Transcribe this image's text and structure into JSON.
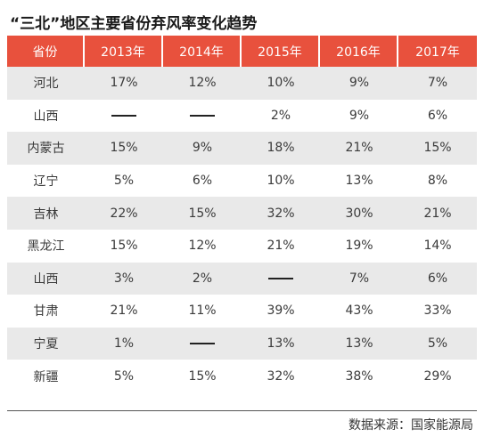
{
  "title": "“三北”地区主要省份弃风率变化趋势",
  "table": {
    "headers": [
      "省份",
      "2013年",
      "2014年",
      "2015年",
      "2016年",
      "2017年"
    ],
    "rows": [
      [
        "河北",
        "17%",
        "12%",
        "10%",
        "9%",
        "7%"
      ],
      [
        "山西",
        "—",
        "—",
        "2%",
        "9%",
        "6%"
      ],
      [
        "内蒙古",
        "15%",
        "9%",
        "18%",
        "21%",
        "15%"
      ],
      [
        "辽宁",
        "5%",
        "6%",
        "10%",
        "13%",
        "8%"
      ],
      [
        "吉林",
        "22%",
        "15%",
        "32%",
        "30%",
        "21%"
      ],
      [
        "黑龙江",
        "15%",
        "12%",
        "21%",
        "19%",
        "14%"
      ],
      [
        "山西",
        "3%",
        "2%",
        "—",
        "7%",
        "6%"
      ],
      [
        "甘肃",
        "21%",
        "11%",
        "39%",
        "43%",
        "33%"
      ],
      [
        "宁夏",
        "1%",
        "—",
        "13%",
        "13%",
        "5%"
      ],
      [
        "新疆",
        "5%",
        "15%",
        "32%",
        "38%",
        "29%"
      ]
    ]
  },
  "source": "数据来源：国家能源局",
  "colors": {
    "header_bg": "#e8513d",
    "header_text": "#ffffff",
    "stripe_bg": "#e9e9e9"
  }
}
